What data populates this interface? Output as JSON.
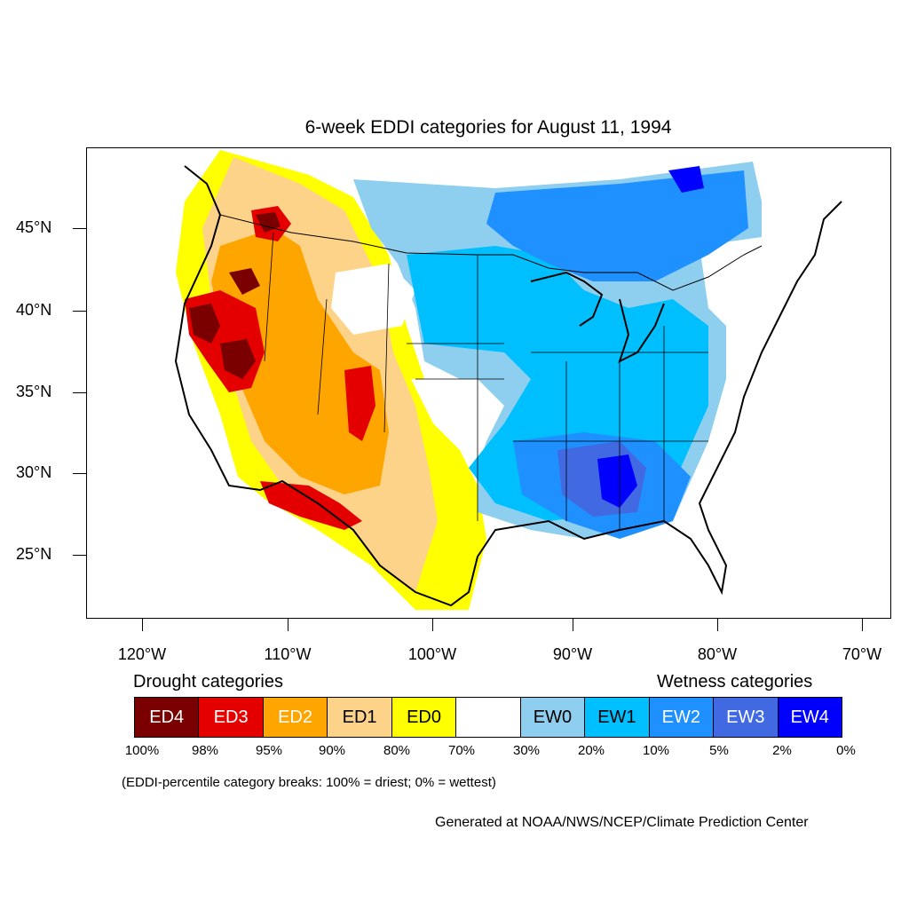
{
  "title": "6-week EDDI categories for August 11, 1994",
  "lat_labels": [
    "45°N",
    "40°N",
    "35°N",
    "30°N",
    "25°N"
  ],
  "lon_labels": [
    "120°W",
    "110°W",
    "100°W",
    "90°W",
    "80°W",
    "70°W"
  ],
  "drought_heading": "Drought categories",
  "wetness_heading": "Wetness categories",
  "legend": [
    {
      "label": "ED4",
      "color": "#7a0000",
      "text_color": "#ffffff"
    },
    {
      "label": "ED3",
      "color": "#e50000",
      "text_color": "#ffffff"
    },
    {
      "label": "ED2",
      "color": "#ffa500",
      "text_color": "#ffffff"
    },
    {
      "label": "ED1",
      "color": "#fdd38a",
      "text_color": "#000000"
    },
    {
      "label": "ED0",
      "color": "#ffff00",
      "text_color": "#000000"
    },
    {
      "label": "",
      "color": "#ffffff",
      "text_color": "#000000"
    },
    {
      "label": "EW0",
      "color": "#8ecfef",
      "text_color": "#000000"
    },
    {
      "label": "EW1",
      "color": "#00bfff",
      "text_color": "#000000"
    },
    {
      "label": "EW2",
      "color": "#1e90ff",
      "text_color": "#ffffff"
    },
    {
      "label": "EW3",
      "color": "#4169e1",
      "text_color": "#ffffff"
    },
    {
      "label": "EW4",
      "color": "#0000ff",
      "text_color": "#ffffff"
    }
  ],
  "percentiles": [
    "100%",
    "98%",
    "95%",
    "90%",
    "80%",
    "70%",
    "30%",
    "20%",
    "10%",
    "5%",
    "2%",
    "0%"
  ],
  "note": "(EDDI-percentile category breaks: 100% = driest; 0% = wettest)",
  "credit": "Generated at NOAA/NWS/NCEP/Climate Prediction Center"
}
